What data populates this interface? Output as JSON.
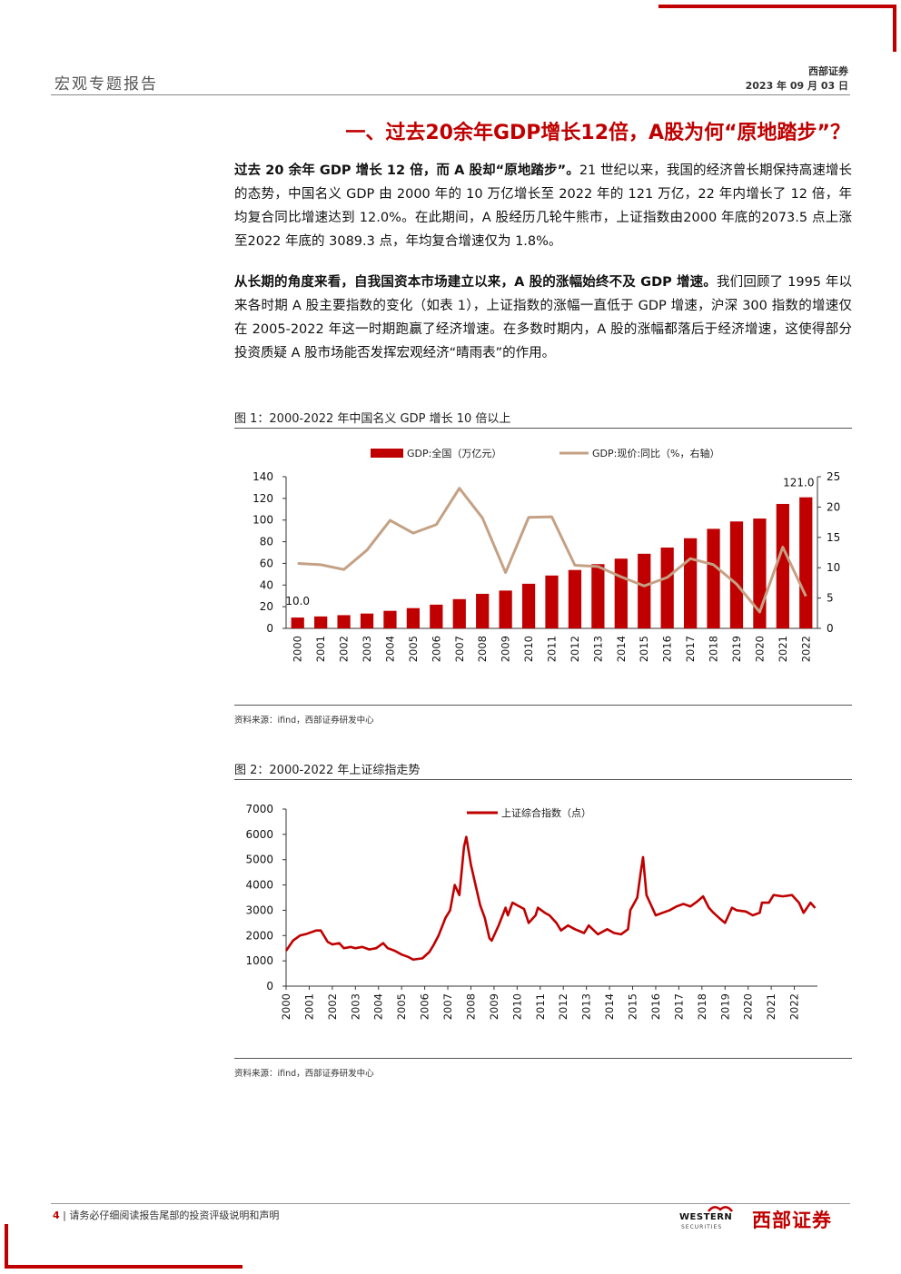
{
  "header": {
    "report_type": "宏观专题报告",
    "company": "西部证券",
    "date": "2023 年 09 月 03 日"
  },
  "section_title": "一、过去20余年GDP增长12倍，A股为何“原地踏步”？",
  "paragraphs": [
    {
      "bold": "过去 20 余年 GDP 增长 12 倍，而 A 股却“原地踏步”。",
      "text": "21 世纪以来，我国的经济曾长期保持高速增长的态势，中国名义 GDP 由 2000 年的 10 万亿增长至 2022 年的 121 万亿，22 年内增长了 12 倍，年均复合同比增速达到 12.0%。在此期间，A 股经历几轮牛熊市，上证指数由2000 年底的2073.5 点上涨至2022 年底的 3089.3 点，年均复合增速仅为 1.8%。"
    },
    {
      "bold": "从长期的角度来看，自我国资本市场建立以来，A 股的涨幅始终不及 GDP 增速。",
      "text": "我们回顾了 1995 年以来各时期 A 股主要指数的变化（如表 1），上证指数的涨幅一直低于 GDP 增速，沪深 300 指数的增速仅在 2005-2022 年这一时期跑赢了经济增速。在多数时期内，A 股的涨幅都落后于经济增速，这使得部分投资质疑 A 股市场能否发挥宏观经济“晴雨表”的作用。"
    }
  ],
  "figure1": {
    "title": "图 1：2000-2022 年中国名义 GDP 增长 10 倍以上",
    "source": "资料来源：ifind，西部证券研发中心"
  },
  "figure2": {
    "title": "图 2：2000-2022 年上证综指走势",
    "source": "资料来源：ifind，西部证券研发中心"
  },
  "chart_data": [
    {
      "type": "bar+line",
      "categories": [
        "2000",
        "2001",
        "2002",
        "2003",
        "2004",
        "2005",
        "2006",
        "2007",
        "2008",
        "2009",
        "2010",
        "2011",
        "2012",
        "2013",
        "2014",
        "2015",
        "2016",
        "2017",
        "2018",
        "2019",
        "2020",
        "2021",
        "2022"
      ],
      "series": [
        {
          "name": "GDP:全国（万亿元）",
          "type": "bar",
          "axis": "left",
          "values": [
            10.0,
            11.0,
            12.2,
            13.7,
            16.2,
            18.7,
            21.9,
            27.0,
            31.9,
            34.9,
            41.2,
            48.8,
            53.9,
            59.3,
            64.4,
            68.9,
            74.6,
            83.2,
            91.9,
            98.7,
            101.4,
            114.9,
            121.0
          ]
        },
        {
          "name": "GDP:现价:同比（%，右轴）",
          "type": "line",
          "axis": "right",
          "values": [
            10.7,
            10.5,
            9.7,
            12.9,
            17.8,
            15.7,
            17.1,
            23.1,
            18.2,
            9.2,
            18.3,
            18.4,
            10.4,
            10.2,
            8.5,
            7.0,
            8.4,
            11.5,
            10.5,
            7.3,
            2.7,
            13.4,
            5.3
          ]
        }
      ],
      "data_labels": [
        "10.0",
        "121.0"
      ],
      "ylim_left": [
        0,
        140
      ],
      "yticks_left": [
        "0",
        "20",
        "40",
        "60",
        "80",
        "100",
        "120",
        "140"
      ],
      "ylim_right": [
        0,
        25
      ],
      "yticks_right": [
        "0",
        "5",
        "10",
        "15",
        "20",
        "25"
      ],
      "colors": {
        "bar": "#c00000",
        "line": "#c4a184"
      }
    },
    {
      "type": "line",
      "series": [
        {
          "name": "上证综合指数（点）",
          "x": [
            2000.0,
            2000.3,
            2000.6,
            2000.9,
            2001.3,
            2001.5,
            2001.8,
            2002.0,
            2002.3,
            2002.5,
            2002.8,
            2003.0,
            2003.3,
            2003.6,
            2003.9,
            2004.2,
            2004.4,
            2004.7,
            2005.0,
            2005.3,
            2005.5,
            2005.9,
            2006.2,
            2006.4,
            2006.6,
            2006.9,
            2007.1,
            2007.3,
            2007.5,
            2007.7,
            2007.8,
            2008.0,
            2008.2,
            2008.4,
            2008.6,
            2008.8,
            2008.9,
            2009.2,
            2009.5,
            2009.6,
            2009.8,
            2010.0,
            2010.3,
            2010.5,
            2010.8,
            2010.9,
            2011.2,
            2011.4,
            2011.7,
            2011.9,
            2012.2,
            2012.5,
            2012.9,
            2013.1,
            2013.5,
            2013.9,
            2014.2,
            2014.5,
            2014.8,
            2014.9,
            2015.2,
            2015.35,
            2015.45,
            2015.6,
            2015.8,
            2016.0,
            2016.3,
            2016.6,
            2016.9,
            2017.2,
            2017.5,
            2017.8,
            2018.05,
            2018.3,
            2018.5,
            2018.8,
            2019.0,
            2019.3,
            2019.5,
            2019.9,
            2020.2,
            2020.5,
            2020.6,
            2020.9,
            2021.1,
            2021.5,
            2021.9,
            2022.2,
            2022.4,
            2022.7,
            2022.9
          ],
          "values": [
            1400,
            1800,
            2000,
            2070,
            2200,
            2200,
            1750,
            1650,
            1700,
            1500,
            1550,
            1500,
            1550,
            1450,
            1500,
            1700,
            1500,
            1400,
            1250,
            1150,
            1050,
            1100,
            1350,
            1650,
            2000,
            2700,
            3000,
            4000,
            3600,
            5500,
            5900,
            4800,
            4000,
            3200,
            2700,
            1900,
            1800,
            2400,
            3100,
            2800,
            3300,
            3200,
            3050,
            2500,
            2800,
            3100,
            2900,
            2800,
            2500,
            2200,
            2400,
            2250,
            2100,
            2400,
            2050,
            2250,
            2100,
            2050,
            2250,
            3000,
            3500,
            4500,
            5100,
            3600,
            3200,
            2800,
            2900,
            3000,
            3150,
            3250,
            3150,
            3350,
            3550,
            3100,
            2900,
            2650,
            2500,
            3100,
            3000,
            2950,
            2800,
            2900,
            3300,
            3300,
            3600,
            3550,
            3600,
            3300,
            2900,
            3300,
            3089
          ]
        }
      ],
      "xlim": [
        2000,
        2023
      ],
      "xticks": [
        "2000",
        "2001",
        "2002",
        "2003",
        "2004",
        "2005",
        "2006",
        "2007",
        "2008",
        "2009",
        "2010",
        "2011",
        "2012",
        "2013",
        "2014",
        "2015",
        "2016",
        "2017",
        "2018",
        "2019",
        "2020",
        "2021",
        "2022"
      ],
      "ylim": [
        0,
        7000
      ],
      "yticks": [
        "0",
        "1000",
        "2000",
        "3000",
        "4000",
        "5000",
        "6000",
        "7000"
      ],
      "colors": {
        "line": "#c00000"
      }
    }
  ],
  "footer": {
    "page": "4",
    "separator": "|",
    "disclaimer": "请务必仔细阅读报告尾部的投资评级说明和声明",
    "logo_en": "WESTERN",
    "logo_en2": "SECURITIES",
    "logo_cn": "西部证券"
  }
}
